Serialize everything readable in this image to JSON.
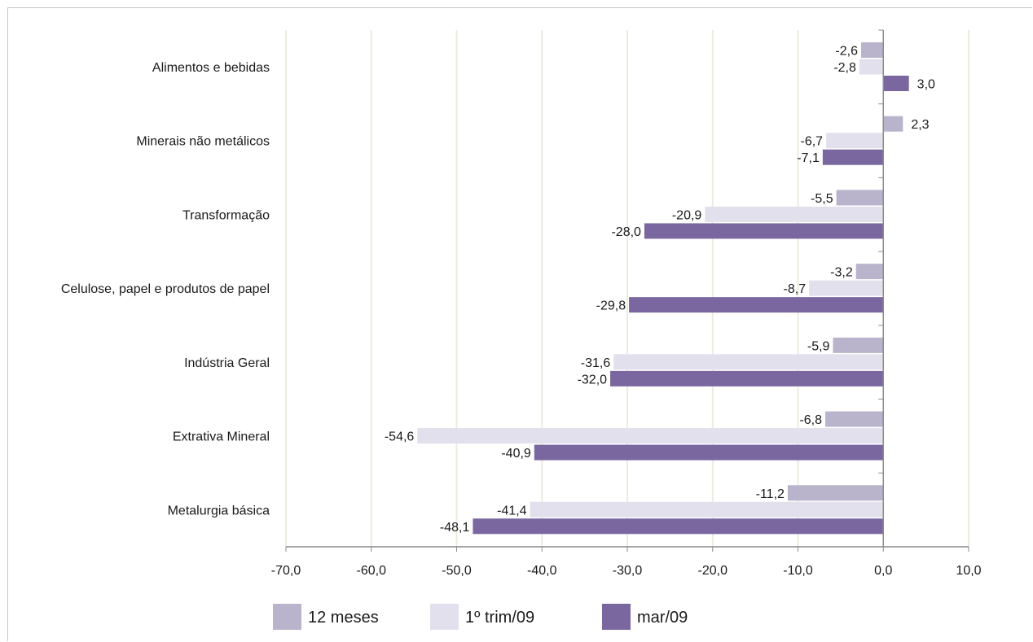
{
  "chart_data": {
    "type": "bar",
    "orientation": "horizontal",
    "categories": [
      "Alimentos e bebidas",
      "Minerais não metálicos",
      "Transformação",
      "Celulose, papel e produtos de papel",
      "Indústria Geral",
      "Extrativa Mineral",
      "Metalurgia básica"
    ],
    "series": [
      {
        "name": "12 meses",
        "color": "#b9b4cc",
        "values": [
          -2.6,
          2.3,
          -5.5,
          -3.2,
          -5.9,
          -6.8,
          -11.2
        ],
        "labels": [
          "-2,6",
          "2,3",
          "-5,5",
          "-3,2",
          "-5,9",
          "-6,8",
          "-11,2"
        ]
      },
      {
        "name": "1º trim/09",
        "color": "#e2e0ec",
        "values": [
          -2.8,
          -6.7,
          -20.9,
          -8.7,
          -31.6,
          -54.6,
          -41.4
        ],
        "labels": [
          "-2,8",
          "-6,7",
          "-20,9",
          "-8,7",
          "-31,6",
          "-54,6",
          "-41,4"
        ]
      },
      {
        "name": "mar/09",
        "color": "#7a67a0",
        "values": [
          3.0,
          -7.1,
          -28.0,
          -29.8,
          -32.0,
          -40.9,
          -48.1
        ],
        "labels": [
          "3,0",
          "-7,1",
          "-28,0",
          "-29,8",
          "-32,0",
          "-40,9",
          "-48,1"
        ]
      }
    ],
    "xlim": [
      -70,
      10
    ],
    "xticks": [
      -70,
      -60,
      -50,
      -40,
      -30,
      -20,
      -10,
      0,
      10
    ],
    "xtick_labels": [
      "-70,0",
      "-60,0",
      "-50,0",
      "-40,0",
      "-30,0",
      "-20,0",
      "-10,0",
      "0,0",
      "10,0"
    ],
    "grid": true,
    "legend_position": "bottom",
    "title": "",
    "xlabel": "",
    "ylabel": ""
  }
}
